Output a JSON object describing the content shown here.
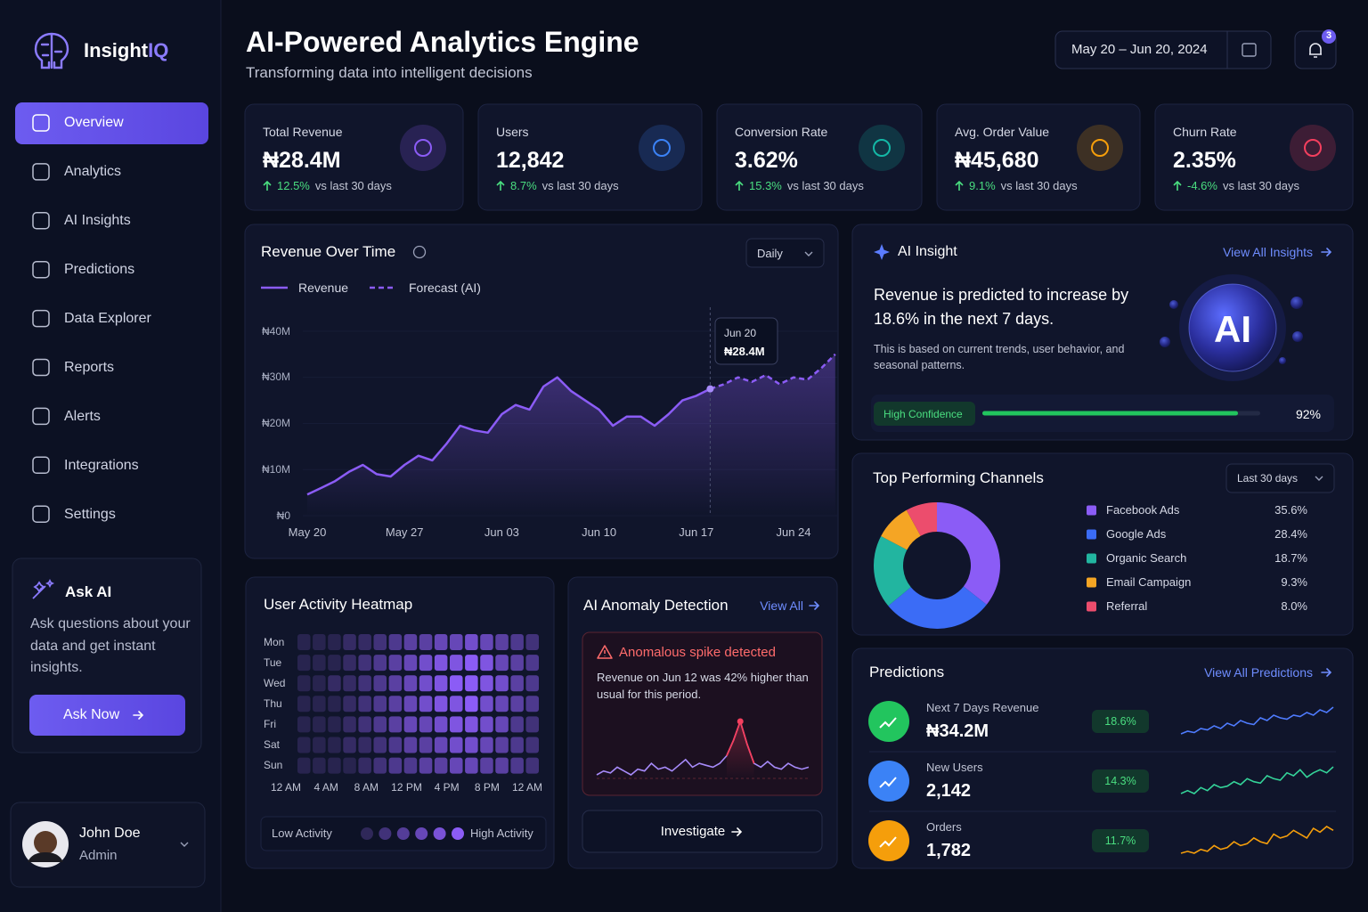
{
  "sidebar": {
    "brand": {
      "name": "Insight",
      "accent": "IQ"
    },
    "nav": [
      {
        "label": "Overview",
        "active": true
      },
      {
        "label": "Analytics"
      },
      {
        "label": "AI Insights"
      },
      {
        "label": "Predictions"
      },
      {
        "label": "Data Explorer"
      },
      {
        "label": "Reports"
      },
      {
        "label": "Alerts"
      },
      {
        "label": "Integrations"
      },
      {
        "label": "Settings"
      }
    ],
    "ask_ai": {
      "title": "Ask AI",
      "text": "Ask questions about your data and get instant insights.",
      "button": "Ask Now"
    },
    "user": {
      "name": "John Doe",
      "role": "Admin"
    }
  },
  "header": {
    "title": "AI-Powered Analytics Engine",
    "subtitle": "Transforming data into intelligent decisions",
    "date_range": "May 20 – Jun 20, 2024",
    "notifications": 3
  },
  "kpis": [
    {
      "label": "Total Revenue",
      "value": "₦28.4M",
      "change": "12.5%",
      "note": "vs last 30 days",
      "color": "#8b5cf6"
    },
    {
      "label": "Users",
      "value": "12,842",
      "change": "8.7%",
      "note": "vs last 30 days",
      "color": "#3b82f6"
    },
    {
      "label": "Conversion Rate",
      "value": "3.62%",
      "change": "15.3%",
      "note": "vs last 30 days",
      "color": "#14b8a6"
    },
    {
      "label": "Avg. Order Value",
      "value": "₦45,680",
      "change": "9.1%",
      "note": "vs last 30 days",
      "color": "#f59e0b"
    },
    {
      "label": "Churn Rate",
      "value": "2.35%",
      "change": "-4.6%",
      "note": "vs last 30 days",
      "color": "#f43f5e"
    }
  ],
  "revenue_chart": {
    "type": "line",
    "title": "Revenue Over Time",
    "dropdown": "Daily",
    "categories": [
      "May 20",
      null,
      null,
      null,
      null,
      null,
      null,
      "May 27",
      null,
      null,
      null,
      null,
      null,
      null,
      "Jun 03",
      null,
      null,
      null,
      null,
      null,
      null,
      "Jun 10",
      null,
      null,
      null,
      null,
      null,
      null,
      "Jun 17",
      null,
      null,
      null,
      null,
      null,
      null,
      "Jun 24",
      null,
      null,
      null
    ],
    "series": [
      {
        "name": "Revenue",
        "color": "#8b5cf6",
        "values": [
          4.6,
          6,
          7.5,
          9.5,
          11,
          9,
          8.5,
          11,
          13,
          12,
          15.5,
          19.5,
          18.5,
          18,
          22,
          24,
          23,
          28,
          30,
          27,
          25,
          23,
          19.5,
          21.5,
          21.5,
          19.5,
          22,
          25,
          26,
          27.5,
          null,
          null,
          null,
          null,
          null,
          null,
          null,
          null,
          null
        ]
      },
      {
        "name": "Forecast (AI)",
        "color": "#8b5cf6",
        "dashed": true,
        "values": [
          null,
          null,
          null,
          null,
          null,
          null,
          null,
          null,
          null,
          null,
          null,
          null,
          null,
          null,
          null,
          null,
          null,
          null,
          null,
          null,
          null,
          null,
          null,
          null,
          null,
          null,
          null,
          null,
          null,
          27.5,
          28.5,
          30,
          29,
          30.5,
          28.5,
          30,
          29.5,
          32,
          35
        ]
      }
    ],
    "ylim": [
      0,
      45
    ],
    "yticks": [
      {
        "value": 0,
        "label": "₦0"
      },
      {
        "value": 10,
        "label": "₦10M"
      },
      {
        "value": 20,
        "label": "₦20M"
      },
      {
        "value": 30,
        "label": "₦30M"
      },
      {
        "value": 40,
        "label": "₦40M"
      }
    ],
    "tooltip": {
      "x": "Jun 20",
      "value": "₦28.4M"
    }
  },
  "ai_insight": {
    "title": "AI Insight",
    "link": "View All Insights",
    "headline": "Revenue is predicted to increase by 18.6% in the next 7 days.",
    "text": "This is based on current trends, user behavior, and seasonal patterns.",
    "badge": "AI",
    "confidence": {
      "label": "High Confidence",
      "value": 92,
      "value_label": "92%",
      "lim": [
        0,
        100
      ]
    }
  },
  "channels": {
    "type": "pie",
    "title": "Top Performing Channels",
    "dropdown": "Last 30 days",
    "categories": [
      "Facebook Ads",
      "Google Ads",
      "Organic Search",
      "Email Campaign",
      "Referral"
    ],
    "values": [
      35.6,
      28.4,
      18.7,
      9.3,
      8.0
    ],
    "value_labels": [
      "35.6%",
      "28.4%",
      "18.7%",
      "9.3%",
      "8.0%"
    ],
    "colors": [
      "#8b5cf6",
      "#3b6cf6",
      "#22b5a0",
      "#f5a524",
      "#ec4d6d"
    ]
  },
  "heatmap": {
    "type": "heatmap",
    "title": "User Activity Heatmap",
    "rows": [
      "Mon",
      "Tue",
      "Wed",
      "Thu",
      "Fri",
      "Sat",
      "Sun"
    ],
    "hour_labels": [
      "12 AM",
      "4 AM",
      "8 AM",
      "12 PM",
      "4 PM",
      "8 PM",
      "12 AM"
    ],
    "values": [
      [
        1,
        1,
        1,
        2,
        2,
        3,
        4,
        5,
        5,
        6,
        6,
        7,
        6,
        5,
        4,
        3
      ],
      [
        1,
        1,
        1,
        2,
        3,
        4,
        5,
        6,
        7,
        8,
        8,
        9,
        8,
        6,
        5,
        4
      ],
      [
        1,
        1,
        2,
        2,
        3,
        4,
        5,
        6,
        7,
        8,
        9,
        9,
        8,
        7,
        5,
        4
      ],
      [
        1,
        1,
        1,
        2,
        3,
        4,
        5,
        6,
        7,
        8,
        8,
        9,
        7,
        6,
        5,
        4
      ],
      [
        1,
        1,
        1,
        2,
        3,
        4,
        5,
        6,
        6,
        7,
        8,
        8,
        7,
        6,
        4,
        3
      ],
      [
        1,
        1,
        1,
        2,
        2,
        3,
        4,
        5,
        5,
        6,
        7,
        7,
        6,
        5,
        4,
        3
      ],
      [
        1,
        1,
        1,
        1,
        2,
        3,
        4,
        4,
        5,
        5,
        6,
        6,
        5,
        5,
        4,
        3
      ]
    ],
    "color": "#8b5cf6",
    "legend": {
      "low": "Low Activity",
      "high": "High Activity"
    }
  },
  "anomaly": {
    "title": "AI Anomaly Detection",
    "link": "View All",
    "alert": {
      "title": "Anomalous spike detected",
      "text": "Revenue on Jun 12 was 42% higher than usual for this period."
    },
    "chart": {
      "type": "line",
      "color": "#a78bfa",
      "highlight_color": "#f43f5e",
      "values": [
        3,
        4,
        3.5,
        5,
        4,
        3,
        4.5,
        4,
        6,
        4.5,
        5,
        4,
        5.5,
        7,
        5,
        6,
        5.5,
        5,
        6,
        8,
        12,
        17,
        11,
        6,
        5,
        6.5,
        5,
        4.5,
        6,
        5,
        4.5,
        5
      ]
    },
    "button": "Investigate"
  },
  "predictions": {
    "title": "Predictions",
    "link": "View All Predictions",
    "items": [
      {
        "label": "Next 7 Days Revenue",
        "value": "₦34.2M",
        "change": "18.6%",
        "icon_color": "#22c55e",
        "line_color": "#4f7cff",
        "trend": [
          3,
          4,
          3.5,
          5,
          4.5,
          6,
          5,
          7,
          6,
          8,
          7,
          6.5,
          9,
          8,
          10,
          9,
          8.5,
          10,
          9.5,
          11,
          10,
          12,
          11,
          13
        ]
      },
      {
        "label": "New Users",
        "value": "2,142",
        "change": "14.3%",
        "icon_color": "#3b82f6",
        "line_color": "#34d399",
        "trend": [
          3,
          4,
          3,
          5,
          4,
          6,
          5,
          5.5,
          7,
          6,
          8,
          7,
          6.5,
          9,
          8,
          7.5,
          10,
          9,
          11,
          8.5,
          10,
          11,
          10,
          12
        ]
      },
      {
        "label": "Orders",
        "value": "1,782",
        "change": "11.7%",
        "icon_color": "#f59e0b",
        "line_color": "#f59e0b",
        "trend": [
          3,
          3.5,
          3,
          4,
          3.5,
          5,
          4,
          4.5,
          6,
          5,
          5.5,
          7,
          6,
          5.5,
          8,
          7,
          7.5,
          9,
          8,
          7,
          9.5,
          8.5,
          10,
          9
        ]
      }
    ]
  }
}
